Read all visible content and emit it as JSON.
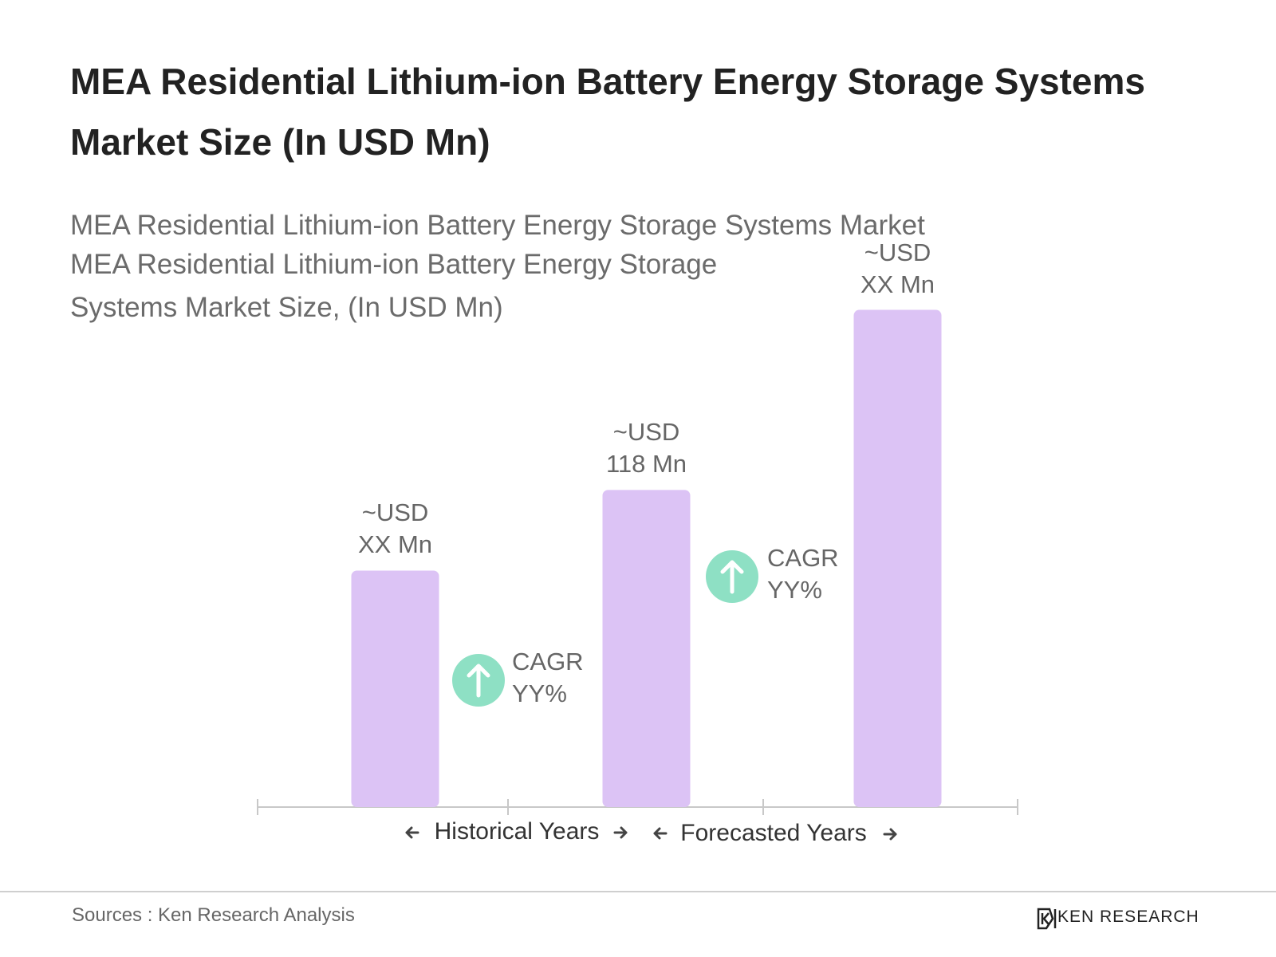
{
  "chart_data": {
    "type": "bar",
    "title": "MEA Residential Lithium-ion Battery Energy Storage Systems Market Size (In USD Mn)",
    "subtitle": [
      "MEA Residential Lithium-ion Battery Energy Storage Systems Market",
      "MEA Residential Lithium-ion Battery Energy Storage Systems Market Size, (In USD Mn)"
    ],
    "categories": [
      null,
      null,
      null
    ],
    "values": [
      88,
      118,
      185
    ],
    "value_labels": [
      "~USD\nXX Mn",
      "~USD\n118 Mn",
      "~USD\nXX Mn"
    ],
    "color": "#dcc3f5",
    "ylim": [
      0,
      200
    ],
    "annotations": [
      "CAGR\nYY%",
      "CAGR\nYY%"
    ],
    "period_labels": [
      "Historical Years",
      "Forecasted Years"
    ]
  },
  "footer": {
    "source": "Sources : Ken Research Analysis",
    "logo": "KEN RESEARCH"
  }
}
